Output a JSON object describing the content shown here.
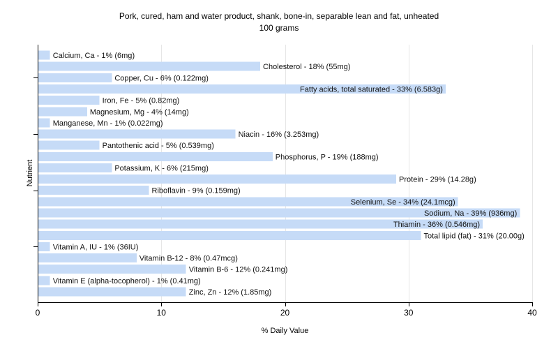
{
  "chart_data": {
    "type": "bar",
    "orientation": "horizontal",
    "title": "Pork, cured, ham and water product, shank, bone-in, separable lean and fat, unheated",
    "subtitle": "100 grams",
    "xlabel": "% Daily Value",
    "ylabel": "Nutrient",
    "xlim": [
      0,
      40
    ],
    "xticks": [
      0,
      10,
      20,
      30,
      40
    ],
    "grid": true,
    "bar_color": "#c6dbf7",
    "categories": [
      "Calcium, Ca",
      "Cholesterol",
      "Copper, Cu",
      "Fatty acids, total saturated",
      "Iron, Fe",
      "Magnesium, Mg",
      "Manganese, Mn",
      "Niacin",
      "Pantothenic acid",
      "Phosphorus, P",
      "Potassium, K",
      "Protein",
      "Riboflavin",
      "Selenium, Se",
      "Sodium, Na",
      "Thiamin",
      "Total lipid (fat)",
      "Vitamin A, IU",
      "Vitamin B-12",
      "Vitamin B-6",
      "Vitamin E (alpha-tocopherol)",
      "Zinc, Zn"
    ],
    "values": [
      1,
      18,
      6,
      33,
      5,
      4,
      1,
      16,
      5,
      19,
      6,
      29,
      9,
      34,
      39,
      36,
      31,
      1,
      8,
      12,
      1,
      12
    ],
    "amounts": [
      "6mg",
      "55mg",
      "0.122mg",
      "6.583g",
      "0.82mg",
      "14mg",
      "0.022mg",
      "3.253mg",
      "0.539mg",
      "188mg",
      "215mg",
      "14.28g",
      "0.159mg",
      "24.1mcg",
      "936mg",
      "0.546mg",
      "20.00g",
      "36IU",
      "0.47mcg",
      "0.241mg",
      "0.41mg",
      "1.85mg"
    ]
  }
}
